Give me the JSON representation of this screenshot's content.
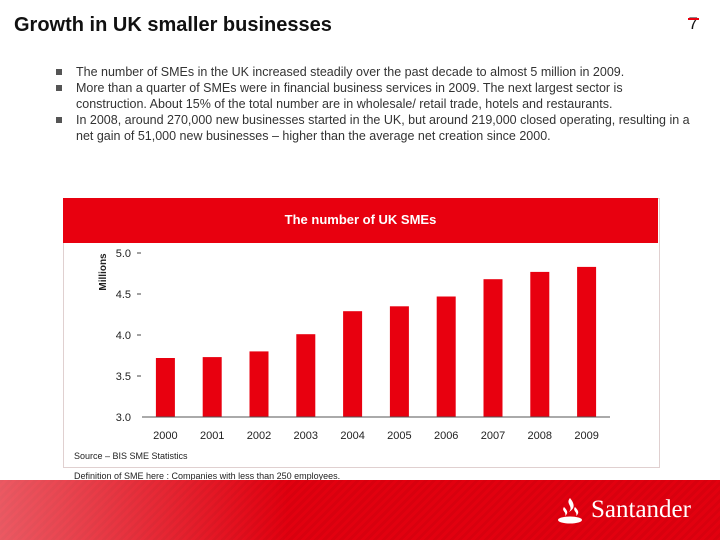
{
  "header": {
    "title": "Growth in UK smaller businesses",
    "page_number": "7"
  },
  "bullets": [
    "The number of SMEs in the UK increased steadily over the past decade to almost 5 million in 2009.",
    "More than a quarter of SMEs were in financial business services in 2009. The next largest sector is construction. About 15% of the total number are in wholesale/ retail trade, hotels and restaurants.",
    "In 2008, around 270,000 new businesses started in the UK, but around 219,000 closed operating, resulting in a net gain of 51,000 new businesses – higher than the average net creation since 2000."
  ],
  "chart_data": {
    "type": "bar",
    "title": "The number of UK SMEs",
    "ylabel": "Millions",
    "xlabel": "",
    "categories": [
      "2000",
      "2001",
      "2002",
      "2003",
      "2004",
      "2005",
      "2006",
      "2007",
      "2008",
      "2009"
    ],
    "values": [
      3.72,
      3.73,
      3.8,
      4.01,
      4.29,
      4.35,
      4.47,
      4.68,
      4.77,
      4.83
    ],
    "ylim": [
      3.0,
      5.0
    ],
    "yticks": [
      "3.0",
      "3.5",
      "4.0",
      "4.5",
      "5.0"
    ],
    "bar_color": "#e8000f",
    "legend": "none",
    "grid": false
  },
  "notes": {
    "source": "Source – BIS SME Statistics",
    "definition": "Definition of SME here : Companies with less than 250 employees."
  },
  "footer": {
    "brand": "Santander",
    "brand_icon": "flame-icon",
    "accent_color": "#e8000f"
  }
}
